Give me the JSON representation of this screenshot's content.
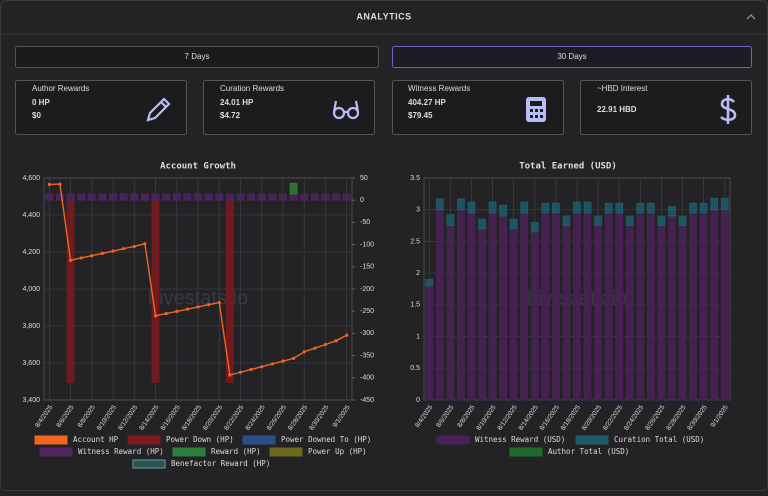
{
  "header": {
    "title": "ANALYTICS"
  },
  "tabs": [
    "7 Days",
    "30 Days"
  ],
  "cards": [
    {
      "label": "Author Rewards",
      "lines": [
        "0 HP",
        "$0"
      ]
    },
    {
      "label": "Curation Rewards",
      "lines": [
        "24.01 HP",
        "$4.72"
      ]
    },
    {
      "label": "Witness Rewards",
      "lines": [
        "404.27 HP",
        "$79.45"
      ]
    },
    {
      "label": "~HBD Interest",
      "lines": [
        "22.91 HBD"
      ]
    }
  ],
  "chart_data": [
    {
      "type": "combo",
      "title": "Account Growth",
      "watermark": "hivestats.io",
      "categories": [
        "8/4/2025",
        null,
        "8/6/2025",
        null,
        "8/8/2025",
        null,
        "8/10/2025",
        null,
        "8/12/2025",
        null,
        "8/14/2025",
        null,
        "8/16/2025",
        null,
        "8/18/2025",
        null,
        "8/20/2025",
        null,
        "8/22/2025",
        null,
        "8/24/2025",
        null,
        "8/26/2025",
        null,
        "8/28/2025",
        null,
        "8/30/2025",
        null,
        "9/1/2025"
      ],
      "ylim": [
        3400,
        4600
      ],
      "yticks": [
        {
          "value": 3400,
          "label": "3,400"
        },
        {
          "value": 3600,
          "label": "3,600"
        },
        {
          "value": 3800,
          "label": "3,800"
        },
        {
          "value": 4000,
          "label": "4,000"
        },
        {
          "value": 4200,
          "label": "4,200"
        },
        {
          "value": 4400,
          "label": "4,400"
        },
        {
          "value": 4600,
          "label": "4,600"
        }
      ],
      "y2lim": [
        -450,
        50
      ],
      "y2ticks": [
        50,
        0,
        -50,
        -100,
        -150,
        -200,
        -250,
        -300,
        -350,
        -400,
        -450
      ],
      "grid": true,
      "series": [
        {
          "name": "Account HP",
          "type": "line",
          "color": "#f26522",
          "values": [
            4565,
            4567,
            4155,
            4168,
            4180,
            4192,
            4205,
            4218,
            4230,
            4245,
            3855,
            3867,
            3879,
            3891,
            3903,
            3915,
            3927,
            3535,
            3550,
            3565,
            3580,
            3595,
            3610,
            3625,
            3660,
            3680,
            3700,
            3720,
            3750
          ]
        },
        {
          "name": "Power Down (HP)",
          "type": "bar",
          "axis": "y2",
          "color": "#7a1a1e",
          "values": [
            null,
            null,
            -410,
            null,
            null,
            null,
            null,
            null,
            null,
            null,
            -410,
            null,
            null,
            null,
            null,
            null,
            null,
            -410,
            null,
            null,
            null,
            null,
            null,
            null,
            null,
            null,
            null,
            null,
            null
          ]
        },
        {
          "name": "Power Downed To (HP)",
          "type": "bar",
          "axis": "y2",
          "color": "#2c4f8c",
          "values": [
            null,
            null,
            null,
            null,
            null,
            null,
            null,
            null,
            null,
            null,
            null,
            null,
            null,
            null,
            null,
            null,
            null,
            null,
            null,
            null,
            null,
            null,
            null,
            null,
            null,
            null,
            null,
            null,
            null
          ]
        },
        {
          "name": "Witness Reward (HP)",
          "type": "bar",
          "axis": "y2",
          "color": "#4e2560",
          "values": [
            14,
            14,
            14,
            14,
            14,
            14,
            14,
            14,
            14,
            14,
            14,
            14,
            14,
            14,
            14,
            14,
            14,
            14,
            14,
            14,
            14,
            14,
            14,
            14,
            14,
            14,
            14,
            14,
            14
          ]
        },
        {
          "name": "Reward (HP)",
          "type": "bar",
          "axis": "y2",
          "color": "#2e7d3a",
          "values": [
            null,
            null,
            null,
            null,
            null,
            null,
            null,
            null,
            null,
            null,
            null,
            null,
            null,
            null,
            null,
            null,
            null,
            null,
            null,
            null,
            null,
            null,
            null,
            24,
            null,
            null,
            null,
            null,
            null
          ]
        },
        {
          "name": "Power Up (HP)",
          "type": "bar",
          "axis": "y2",
          "color": "#6b6a1f",
          "values": [
            null,
            null,
            null,
            null,
            null,
            null,
            null,
            null,
            null,
            null,
            null,
            null,
            null,
            null,
            null,
            null,
            null,
            null,
            null,
            null,
            null,
            null,
            null,
            null,
            null,
            null,
            null,
            null,
            null
          ]
        },
        {
          "name": "Benefactor Reward (HP)",
          "type": "bar",
          "axis": "y2",
          "color": "#2a5550",
          "values": [
            null,
            null,
            null,
            null,
            null,
            null,
            null,
            null,
            null,
            null,
            null,
            null,
            null,
            null,
            null,
            null,
            null,
            null,
            null,
            null,
            null,
            null,
            null,
            null,
            null,
            null,
            null,
            null,
            null
          ]
        }
      ]
    },
    {
      "type": "bar",
      "title": "Total Earned (USD)",
      "watermark": "hivestats.io",
      "categories": [
        "8/4/2025",
        null,
        "8/6/2025",
        null,
        "8/8/2025",
        null,
        "8/10/2025",
        null,
        "8/12/2025",
        null,
        "8/14/2025",
        null,
        "8/16/2025",
        null,
        "8/18/2025",
        null,
        "8/20/2025",
        null,
        "8/22/2025",
        null,
        "8/24/2025",
        null,
        "8/26/2025",
        null,
        "8/28/2025",
        null,
        "8/30/2025",
        null,
        "9/1/2025"
      ],
      "ylim": [
        0,
        3.5
      ],
      "yticks": [
        0,
        0.5,
        1,
        1.5,
        2,
        2.5,
        3,
        3.5
      ],
      "grid": true,
      "series": [
        {
          "name": "Witness Reward (USD)",
          "type": "bar",
          "color": "#4a2157",
          "values": [
            1.8,
            3.0,
            2.75,
            3.0,
            2.95,
            2.7,
            2.95,
            2.9,
            2.7,
            2.95,
            2.65,
            2.95,
            2.95,
            2.75,
            2.95,
            2.95,
            2.75,
            2.95,
            2.95,
            2.75,
            2.95,
            2.95,
            2.75,
            2.9,
            2.75,
            2.95,
            2.95,
            3.0,
            3.0
          ]
        },
        {
          "name": "Curation Total (USD)",
          "type": "bar",
          "color": "#1f5c6b",
          "values": [
            0.1,
            0.17,
            0.17,
            0.17,
            0.17,
            0.15,
            0.17,
            0.17,
            0.15,
            0.17,
            0.15,
            0.15,
            0.15,
            0.15,
            0.17,
            0.17,
            0.15,
            0.15,
            0.15,
            0.15,
            0.15,
            0.15,
            0.15,
            0.15,
            0.15,
            0.15,
            0.15,
            0.18,
            0.18
          ]
        },
        {
          "name": "Author Total (USD)",
          "type": "bar",
          "color": "#1f6b2a",
          "values": [
            null,
            null,
            null,
            null,
            null,
            null,
            null,
            null,
            null,
            null,
            null,
            null,
            null,
            null,
            null,
            null,
            null,
            null,
            null,
            null,
            null,
            null,
            null,
            null,
            null,
            null,
            null,
            null,
            null
          ]
        }
      ]
    }
  ]
}
